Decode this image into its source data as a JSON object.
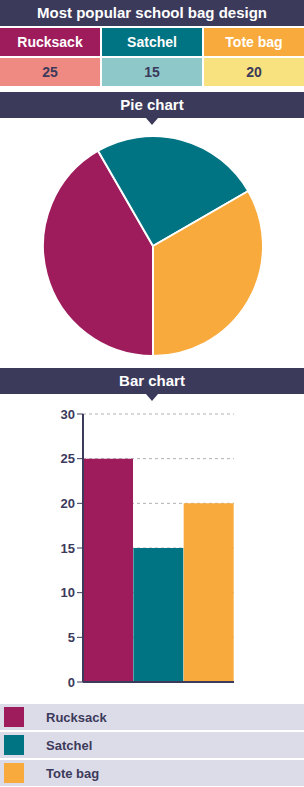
{
  "title": "Most popular school bag design",
  "table": {
    "header": [
      "Rucksack",
      "Satchel",
      "Tote bag"
    ],
    "rows": [
      [
        25,
        15,
        20
      ]
    ],
    "colors": [
      "#9e1c5c",
      "#007482",
      "#f8aa3c"
    ]
  },
  "chart_data": [
    {
      "type": "pie",
      "title": "Pie chart",
      "categories": [
        "Rucksack",
        "Satchel",
        "Tote bag"
      ],
      "values": [
        25,
        15,
        20
      ],
      "colors": [
        "#9e1c5c",
        "#007482",
        "#f8aa3c"
      ]
    },
    {
      "type": "bar",
      "title": "Bar chart",
      "categories": [
        "Rucksack",
        "Satchel",
        "Tote bag"
      ],
      "values": [
        25,
        15,
        20
      ],
      "colors": [
        "#9e1c5c",
        "#007482",
        "#f8aa3c"
      ],
      "ylim": [
        0,
        30
      ],
      "yticks": [
        0,
        5,
        10,
        15,
        20,
        25,
        30
      ],
      "grid": true,
      "legend": "bottom",
      "tick_labels": "y"
    }
  ]
}
